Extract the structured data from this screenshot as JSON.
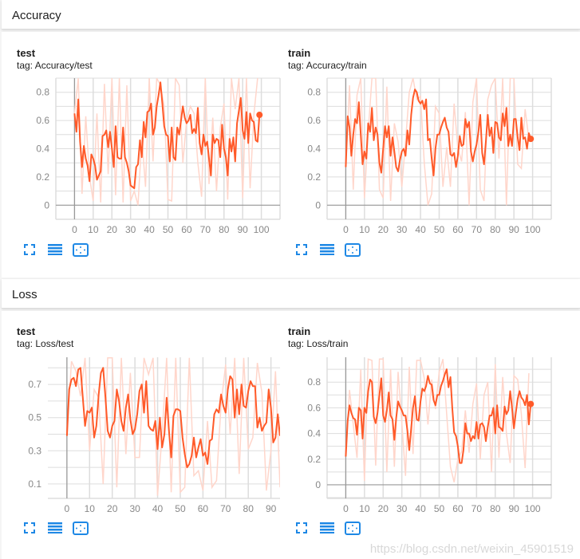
{
  "sections": [
    {
      "title": "Accuracy"
    },
    {
      "title": "Loss"
    }
  ],
  "colors": {
    "line": "#ff5a29",
    "raw": "#ffd6cb",
    "grid": "#dddddd",
    "axis": "#999999",
    "icon": "#1e88e5"
  },
  "icons": [
    "fit-to-screen-icon",
    "toggle-log-scale-icon",
    "fit-domain-icon"
  ],
  "watermark": "https://blog.csdn.net/weixin_45901519",
  "chart_data": [
    {
      "type": "line",
      "title": "test",
      "tag": "tag: Accuracy/test",
      "xlim": [
        -10,
        110
      ],
      "ylim": [
        -0.1,
        0.9
      ],
      "xticks": [
        0,
        10,
        20,
        30,
        40,
        50,
        60,
        70,
        80,
        90,
        100
      ],
      "yticks": [
        0,
        0.2,
        0.4,
        0.6,
        0.8
      ],
      "ytick_labels": [
        "0",
        "0.2",
        "0.4",
        "0.6",
        "0.8"
      ],
      "grid": true,
      "smoothed": [
        0.65,
        0.52,
        0.75,
        0.45,
        0.27,
        0.42,
        0.33,
        0.28,
        0.17,
        0.36,
        0.33,
        0.28,
        0.18,
        0.21,
        0.24,
        0.49,
        0.5,
        0.53,
        0.41,
        0.52,
        0.4,
        0.27,
        0.56,
        0.34,
        0.33,
        0.33,
        0.55,
        0.34,
        0.3,
        0.24,
        0.14,
        0.13,
        0.12,
        0.27,
        0.29,
        0.46,
        0.34,
        0.59,
        0.48,
        0.66,
        0.67,
        0.72,
        0.5,
        0.55,
        0.7,
        0.78,
        0.87,
        0.72,
        0.56,
        0.5,
        0.49,
        0.31,
        0.55,
        0.34,
        0.32,
        0.55,
        0.5,
        0.6,
        0.7,
        0.62,
        0.58,
        0.6,
        0.64,
        0.51,
        0.54,
        0.51,
        0.69,
        0.44,
        0.36,
        0.5,
        0.42,
        0.45,
        0.33,
        0.21,
        0.5,
        0.44,
        0.47,
        0.46,
        0.34,
        0.57,
        0.4,
        0.34,
        0.21,
        0.47,
        0.38,
        0.48,
        0.31,
        0.58,
        0.67,
        0.76,
        0.53,
        0.47,
        0.66,
        0.44,
        0.65,
        0.6,
        0.59,
        0.46,
        0.45,
        0.64
      ],
      "raw_step": 2,
      "raw": [
        0.65,
        0.9,
        0.08,
        0.63,
        0.2,
        0.03,
        0.65,
        0.02,
        0.86,
        0.22,
        0.9,
        0.07,
        0.9,
        0.02,
        0.85,
        0.03,
        0.1,
        0.0,
        0.48,
        0.13,
        0.9,
        0.31,
        0.9,
        0.85,
        0.7,
        0.04,
        0.03,
        0.9,
        0.85,
        0.3,
        0.6,
        0.7,
        0.65,
        0.3,
        0.06,
        0.9,
        0.15,
        0.62,
        0.1,
        0.55,
        0.72,
        0.04,
        0.9,
        0.68,
        0.9,
        0.05,
        0.9,
        0.12,
        0.64,
        0.9
      ]
    },
    {
      "type": "line",
      "title": "train",
      "tag": "tag: Accuracy/train",
      "xlim": [
        -10,
        110
      ],
      "ylim": [
        -0.1,
        0.9
      ],
      "xticks": [
        0,
        10,
        20,
        30,
        40,
        50,
        60,
        70,
        80,
        90,
        100
      ],
      "yticks": [
        0,
        0.2,
        0.4,
        0.6,
        0.8
      ],
      "ytick_labels": [
        "0",
        "0.2",
        "0.4",
        "0.6",
        "0.8"
      ],
      "grid": true,
      "smoothed": [
        0.27,
        0.63,
        0.55,
        0.35,
        0.5,
        0.61,
        0.58,
        0.73,
        0.5,
        0.29,
        0.38,
        0.33,
        0.58,
        0.52,
        0.69,
        0.46,
        0.55,
        0.5,
        0.3,
        0.23,
        0.4,
        0.56,
        0.48,
        0.56,
        0.35,
        0.48,
        0.38,
        0.27,
        0.24,
        0.32,
        0.38,
        0.4,
        0.35,
        0.53,
        0.43,
        0.64,
        0.76,
        0.82,
        0.8,
        0.74,
        0.72,
        0.74,
        0.68,
        0.75,
        0.46,
        0.47,
        0.33,
        0.21,
        0.4,
        0.5,
        0.5,
        0.55,
        0.59,
        0.62,
        0.55,
        0.52,
        0.36,
        0.35,
        0.37,
        0.27,
        0.35,
        0.49,
        0.42,
        0.43,
        0.61,
        0.55,
        0.59,
        0.38,
        0.31,
        0.38,
        0.43,
        0.52,
        0.64,
        0.37,
        0.29,
        0.45,
        0.64,
        0.49,
        0.55,
        0.37,
        0.59,
        0.58,
        0.48,
        0.46,
        0.65,
        0.56,
        0.69,
        0.42,
        0.5,
        0.42,
        0.61,
        0.61,
        0.48,
        0.39,
        0.62,
        0.47,
        0.48,
        0.4,
        0.51,
        0.47
      ],
      "raw_step": 2,
      "raw": [
        0.27,
        0.85,
        0.11,
        0.78,
        0.9,
        0.05,
        0.52,
        0.9,
        0.9,
        0.11,
        0.05,
        0.84,
        0.03,
        0.58,
        0.45,
        0.13,
        0.45,
        0.8,
        0.9,
        0.75,
        0.77,
        0.3,
        0.0,
        0.08,
        0.7,
        0.65,
        0.13,
        0.41,
        0.13,
        0.72,
        0.4,
        0.31,
        0.66,
        0.0,
        0.73,
        0.9,
        0.11,
        0.03,
        0.75,
        0.85,
        0.9,
        0.33,
        0.9,
        0.0,
        0.9,
        0.9,
        0.29,
        0.26,
        0.68,
        0.47
      ]
    },
    {
      "type": "line",
      "title": "test",
      "tag": "tag: Loss/test",
      "xlim": [
        -8.4,
        94
      ],
      "ylim": [
        0.013,
        0.864
      ],
      "xticks": [
        0,
        10,
        20,
        30,
        40,
        50,
        60,
        70,
        80,
        90
      ],
      "yticks": [
        0.1,
        0.3,
        0.5,
        0.7
      ],
      "ytick_labels": [
        "0.1",
        "0.3",
        "0.5",
        "0.7"
      ],
      "grid": true,
      "smoothed": [
        0.39,
        0.67,
        0.73,
        0.74,
        0.69,
        0.79,
        0.8,
        0.62,
        0.45,
        0.54,
        0.53,
        0.56,
        0.38,
        0.45,
        0.64,
        0.77,
        0.8,
        0.62,
        0.42,
        0.38,
        0.45,
        0.48,
        0.67,
        0.6,
        0.48,
        0.42,
        0.56,
        0.64,
        0.49,
        0.4,
        0.43,
        0.52,
        0.66,
        0.7,
        0.53,
        0.72,
        0.45,
        0.43,
        0.42,
        0.48,
        0.31,
        0.5,
        0.32,
        0.4,
        0.62,
        0.42,
        0.26,
        0.51,
        0.55,
        0.55,
        0.54,
        0.38,
        0.28,
        0.2,
        0.22,
        0.27,
        0.38,
        0.26,
        0.32,
        0.37,
        0.27,
        0.29,
        0.22,
        0.36,
        0.37,
        0.52,
        0.55,
        0.53,
        0.64,
        0.57,
        0.53,
        0.67,
        0.75,
        0.73,
        0.5,
        0.67,
        0.52,
        0.7,
        0.57,
        0.56,
        0.66,
        0.72,
        0.69,
        0.69,
        0.44,
        0.5,
        0.42,
        0.45,
        0.47,
        0.67,
        0.56,
        0.35,
        0.38,
        0.52,
        0.39
      ],
      "raw_step": 2,
      "raw": [
        0.4,
        0.84,
        0.78,
        0.63,
        0.86,
        0.3,
        0.67,
        0.62,
        0.1,
        0.86,
        0.86,
        0.08,
        0.86,
        0.28,
        0.77,
        0.26,
        0.26,
        0.86,
        0.76,
        0.86,
        0.03,
        0.4,
        0.86,
        0.05,
        0.86,
        0.05,
        0.08,
        0.86,
        0.15,
        0.18,
        0.06,
        0.48,
        0.08,
        0.12,
        0.58,
        0.82,
        0.4,
        0.86,
        0.16,
        0.86,
        0.31,
        0.38,
        0.83,
        0.65,
        0.06,
        0.3,
        0.78,
        0.08
      ]
    },
    {
      "type": "line",
      "title": "train",
      "tag": "tag: Loss/train",
      "xlim": [
        -10,
        110
      ],
      "ylim": [
        -0.106,
        0.994
      ],
      "xticks": [
        0,
        10,
        20,
        30,
        40,
        50,
        60,
        70,
        80,
        90,
        100
      ],
      "yticks": [
        0,
        0.2,
        0.4,
        0.6,
        0.8
      ],
      "ytick_labels": [
        "0",
        "0.2",
        "0.4",
        "0.6",
        "0.8"
      ],
      "grid": true,
      "smoothed": [
        0.22,
        0.5,
        0.62,
        0.56,
        0.52,
        0.51,
        0.39,
        0.6,
        0.58,
        0.36,
        0.6,
        0.56,
        0.73,
        0.82,
        0.8,
        0.53,
        0.48,
        0.56,
        0.7,
        0.83,
        0.54,
        0.49,
        0.58,
        0.72,
        0.54,
        0.51,
        0.35,
        0.52,
        0.65,
        0.61,
        0.58,
        0.54,
        0.54,
        0.42,
        0.27,
        0.44,
        0.6,
        0.69,
        0.51,
        0.5,
        0.65,
        0.75,
        0.73,
        0.77,
        0.85,
        0.79,
        0.78,
        0.66,
        0.62,
        0.7,
        0.7,
        0.77,
        0.81,
        0.86,
        0.9,
        0.76,
        0.84,
        0.6,
        0.41,
        0.38,
        0.3,
        0.17,
        0.17,
        0.27,
        0.48,
        0.4,
        0.4,
        0.34,
        0.38,
        0.36,
        0.49,
        0.36,
        0.47,
        0.48,
        0.45,
        0.34,
        0.45,
        0.54,
        0.54,
        0.6,
        0.4,
        0.62,
        0.45,
        0.44,
        0.42,
        0.61,
        0.55,
        0.58,
        0.73,
        0.6,
        0.44,
        0.56,
        0.67,
        0.73,
        0.68,
        0.66,
        0.62,
        0.7,
        0.47,
        0.63
      ],
      "raw_step": 2,
      "raw": [
        0.22,
        0.74,
        0.47,
        0.21,
        0.9,
        0.03,
        0.98,
        0.97,
        0.15,
        0.98,
        0.98,
        0.1,
        0.9,
        0.14,
        0.88,
        0.48,
        0.07,
        0.92,
        0.24,
        0.97,
        0.97,
        0.83,
        0.47,
        0.82,
        0.59,
        0.88,
        0.98,
        0.55,
        0.14,
        0.02,
        0.2,
        0.26,
        0.58,
        0.25,
        0.63,
        0.79,
        0.2,
        0.7,
        0.8,
        0.1,
        0.94,
        0.21,
        0.84,
        0.4,
        0.17,
        0.85,
        0.82,
        0.55,
        0.13,
        0.87
      ]
    }
  ]
}
